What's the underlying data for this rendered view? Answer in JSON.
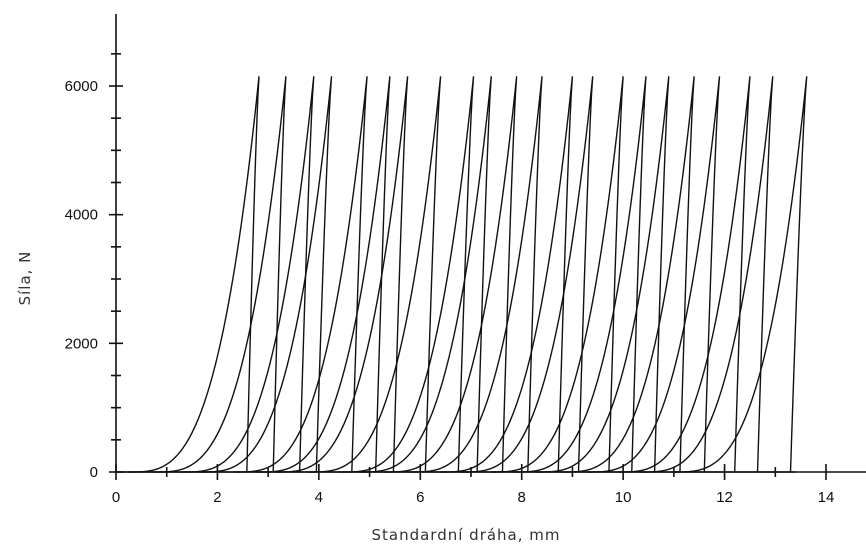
{
  "chart_data": {
    "type": "line",
    "title": "",
    "xlabel": "Standardní dráha, mm",
    "ylabel": "Síla, N",
    "xlim": [
      0,
      14.8
    ],
    "ylim": [
      0,
      7000
    ],
    "xticks": [
      0,
      2,
      4,
      6,
      8,
      10,
      12,
      14
    ],
    "yticks": [
      0,
      2000,
      4000,
      6000
    ],
    "grid": false,
    "legend": "none",
    "peak_force": 6150,
    "series_note": "loading-unloading cycles; each cycle rises from ~0 N to peak and drops steeply back to 0 N",
    "cycles": [
      {
        "start": 0.25,
        "peak": 2.82,
        "unload_end": 2.58
      },
      {
        "start": 0.75,
        "peak": 3.35,
        "unload_end": 3.1
      },
      {
        "start": 1.3,
        "peak": 3.9,
        "unload_end": 3.62
      },
      {
        "start": 1.65,
        "peak": 4.25,
        "unload_end": 3.95
      },
      {
        "start": 2.35,
        "peak": 4.95,
        "unload_end": 4.65
      },
      {
        "start": 2.8,
        "peak": 5.4,
        "unload_end": 5.12
      },
      {
        "start": 3.15,
        "peak": 5.75,
        "unload_end": 5.47
      },
      {
        "start": 3.8,
        "peak": 6.4,
        "unload_end": 6.1
      },
      {
        "start": 4.45,
        "peak": 7.05,
        "unload_end": 6.75
      },
      {
        "start": 4.8,
        "peak": 7.4,
        "unload_end": 7.12
      },
      {
        "start": 5.3,
        "peak": 7.9,
        "unload_end": 7.62
      },
      {
        "start": 5.8,
        "peak": 8.4,
        "unload_end": 8.12
      },
      {
        "start": 6.4,
        "peak": 9.0,
        "unload_end": 8.72
      },
      {
        "start": 6.8,
        "peak": 9.4,
        "unload_end": 9.12
      },
      {
        "start": 7.4,
        "peak": 10.0,
        "unload_end": 9.72
      },
      {
        "start": 7.85,
        "peak": 10.45,
        "unload_end": 10.17
      },
      {
        "start": 8.3,
        "peak": 10.9,
        "unload_end": 10.62
      },
      {
        "start": 8.8,
        "peak": 11.4,
        "unload_end": 11.12
      },
      {
        "start": 9.3,
        "peak": 11.9,
        "unload_end": 11.6
      },
      {
        "start": 9.9,
        "peak": 12.5,
        "unload_end": 12.2
      },
      {
        "start": 10.35,
        "peak": 12.95,
        "unload_end": 12.65
      },
      {
        "start": 11.0,
        "peak": 13.62,
        "unload_end": 13.3
      }
    ]
  }
}
